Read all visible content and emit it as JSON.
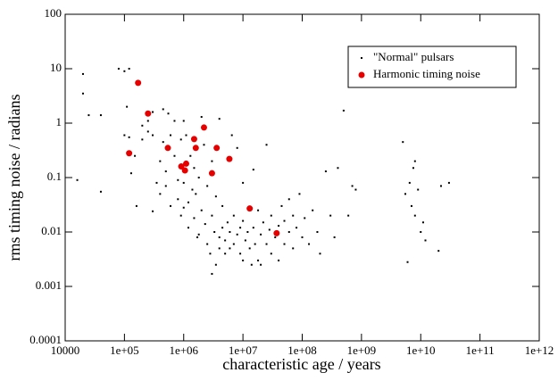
{
  "chart_data": {
    "type": "scatter",
    "xlabel": "characteristic age / years",
    "ylabel": "rms timing noise / radians",
    "xscale": "log",
    "yscale": "log",
    "xlim": [
      10000,
      1000000000000
    ],
    "ylim": [
      0.0001,
      100
    ],
    "xticks": [
      10000,
      {
        "value": 100000,
        "label": "1e+05"
      },
      {
        "value": 1000000,
        "label": "1e+06"
      },
      {
        "value": 10000000,
        "label": "1e+07"
      },
      {
        "value": 100000000,
        "label": "1e+08"
      },
      {
        "value": 1000000000,
        "label": "1e+09"
      },
      {
        "value": 10000000000,
        "label": "1e+10"
      },
      {
        "value": 100000000000,
        "label": "1e+11"
      },
      {
        "value": 1000000000000,
        "label": "1e+12"
      }
    ],
    "yticks": [
      0.0001,
      0.001,
      0.01,
      0.1,
      1,
      10,
      100
    ],
    "legend": "upper right",
    "series": [
      {
        "name": "\"Normal\" pulsars",
        "color": "#000000",
        "marker": "dot",
        "x": [
          16000,
          20000,
          20000,
          25000,
          40000,
          40000,
          80000,
          100000,
          120000,
          100000,
          110000,
          120000,
          130000,
          150000,
          160000,
          200000,
          200000,
          250000,
          250000,
          300000,
          300000,
          300000,
          350000,
          400000,
          400000,
          450000,
          450000,
          500000,
          500000,
          550000,
          600000,
          600000,
          700000,
          700000,
          800000,
          800000,
          900000,
          900000,
          1000000,
          1000000,
          1000000,
          1100000,
          1200000,
          1200000,
          1300000,
          1400000,
          1500000,
          1500000,
          1600000,
          1700000,
          1800000,
          1800000,
          2000000,
          2000000,
          2200000,
          2300000,
          2500000,
          2500000,
          2800000,
          3000000,
          3000000,
          3000000,
          3300000,
          3500000,
          3500000,
          4000000,
          4000000,
          4000000,
          4500000,
          4500000,
          5000000,
          5000000,
          5500000,
          6000000,
          6000000,
          6500000,
          7000000,
          7000000,
          8000000,
          8000000,
          9000000,
          9000000,
          10000000,
          10000000,
          10000000,
          11000000,
          12000000,
          13000000,
          14000000,
          15000000,
          15000000,
          16000000,
          18000000,
          18000000,
          20000000,
          20000000,
          22000000,
          25000000,
          25000000,
          28000000,
          30000000,
          30000000,
          35000000,
          40000000,
          40000000,
          45000000,
          50000000,
          50000000,
          60000000,
          60000000,
          70000000,
          70000000,
          80000000,
          90000000,
          100000000,
          110000000,
          130000000,
          150000000,
          180000000,
          200000000,
          250000000,
          300000000,
          350000000,
          400000000,
          500000000,
          600000000,
          700000000,
          800000000,
          5000000000,
          5500000000,
          6000000000,
          6500000000,
          7000000000,
          7500000000,
          8000000000,
          8000000000,
          9000000000,
          10000000000,
          11000000000,
          12000000000,
          20000000000,
          22000000000,
          30000000000
        ],
        "values": [
          0.09,
          8,
          3.5,
          1.4,
          1.4,
          0.055,
          10,
          9,
          10,
          0.6,
          2,
          0.55,
          0.12,
          0.25,
          0.03,
          0.5,
          0.9,
          0.7,
          1.1,
          0.6,
          1.6,
          0.024,
          0.08,
          0.2,
          0.05,
          1.8,
          0.45,
          0.13,
          0.07,
          1.5,
          0.03,
          0.6,
          0.25,
          1.1,
          0.04,
          0.09,
          0.5,
          0.02,
          0.028,
          0.08,
          1.1,
          0.6,
          0.035,
          0.012,
          0.25,
          0.06,
          0.018,
          0.15,
          0.05,
          0.008,
          0.1,
          0.009,
          0.025,
          1.3,
          0.4,
          0.014,
          0.006,
          0.07,
          0.004,
          0.0017,
          0.02,
          0.2,
          0.01,
          0.0025,
          0.045,
          1.2,
          0.008,
          0.005,
          0.03,
          0.012,
          0.004,
          0.007,
          0.015,
          0.01,
          0.005,
          0.6,
          0.02,
          0.006,
          0.009,
          0.35,
          0.012,
          0.004,
          0.003,
          0.016,
          0.08,
          0.007,
          0.01,
          0.005,
          0.0025,
          0.012,
          0.14,
          0.006,
          0.003,
          0.025,
          0.009,
          0.0025,
          0.015,
          0.006,
          0.4,
          0.011,
          0.004,
          0.02,
          0.008,
          0.013,
          0.003,
          0.03,
          0.006,
          0.016,
          0.01,
          0.04,
          0.005,
          0.02,
          0.012,
          0.05,
          0.008,
          0.018,
          0.006,
          0.025,
          0.01,
          0.004,
          0.13,
          0.02,
          0.008,
          0.15,
          1.7,
          0.02,
          0.07,
          0.06,
          0.45,
          0.05,
          0.0028,
          0.08,
          0.03,
          0.15,
          0.2,
          0.02,
          0.06,
          0.01,
          0.015,
          0.007,
          0.0045,
          0.07,
          0.08
        ]
      },
      {
        "name": "Harmonic timing noise",
        "color": "#e60000",
        "marker": "circle",
        "x": [
          170000,
          250000,
          120000,
          540000,
          1500000,
          2200000,
          1600000,
          3600000,
          910000,
          1100000,
          1050000,
          3000000,
          5900000,
          13000000,
          37000000
        ],
        "values": [
          5.5,
          1.5,
          0.28,
          0.35,
          0.51,
          0.83,
          0.35,
          0.35,
          0.16,
          0.18,
          0.135,
          0.12,
          0.22,
          0.027,
          0.0095
        ]
      }
    ]
  }
}
